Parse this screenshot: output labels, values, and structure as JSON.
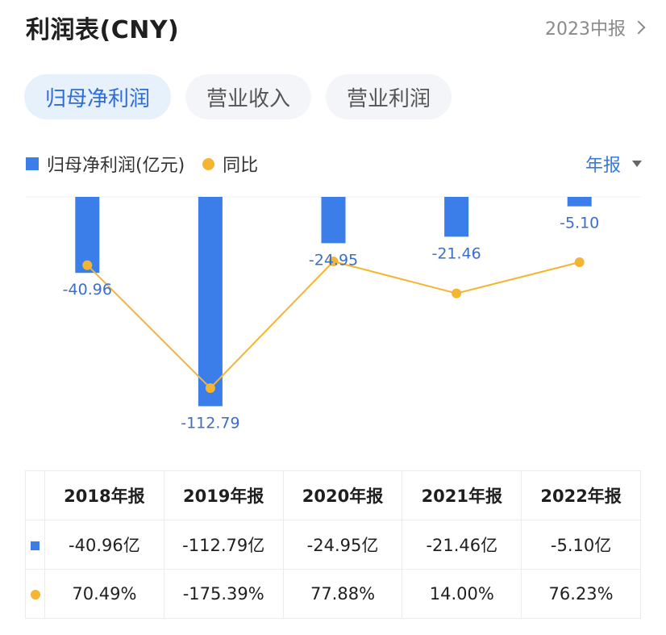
{
  "header": {
    "title": "利润表(CNY)",
    "period": "2023中报"
  },
  "tabs": [
    {
      "label": "归母净利润",
      "active": true
    },
    {
      "label": "营业收入",
      "active": false
    },
    {
      "label": "营业利润",
      "active": false
    }
  ],
  "legend": {
    "bar_label": "归母净利润(亿元)",
    "line_label": "同比",
    "report_select": "年报"
  },
  "colors": {
    "bar": "#3b7de9",
    "line": "#f5b431",
    "accent": "#2f6bd9",
    "positive": "#e0484a",
    "negative": "#23a56c"
  },
  "chart_data": {
    "type": "bar",
    "categories": [
      "2018年报",
      "2019年报",
      "2020年报",
      "2021年报",
      "2022年报"
    ],
    "series": [
      {
        "name": "归母净利润(亿元)",
        "type": "bar",
        "values": [
          -40.96,
          -112.79,
          -24.95,
          -21.46,
          -5.1
        ],
        "labels": [
          "-40.96",
          "-112.79",
          "-24.95",
          "-21.46",
          "-5.10"
        ]
      },
      {
        "name": "同比",
        "type": "line",
        "values": [
          70.49,
          -175.39,
          77.88,
          14.0,
          76.23
        ]
      }
    ],
    "ylim": [
      -120,
      0
    ],
    "grid": false,
    "legend_position": "top-left"
  },
  "table": {
    "headers": [
      "2018年报",
      "2019年报",
      "2020年报",
      "2021年报",
      "2022年报"
    ],
    "profit_row": [
      "-40.96亿",
      "-112.79亿",
      "-24.95亿",
      "-21.46亿",
      "-5.10亿"
    ],
    "yoy_row": [
      "70.49%",
      "-175.39%",
      "77.88%",
      "14.00%",
      "76.23%"
    ]
  }
}
